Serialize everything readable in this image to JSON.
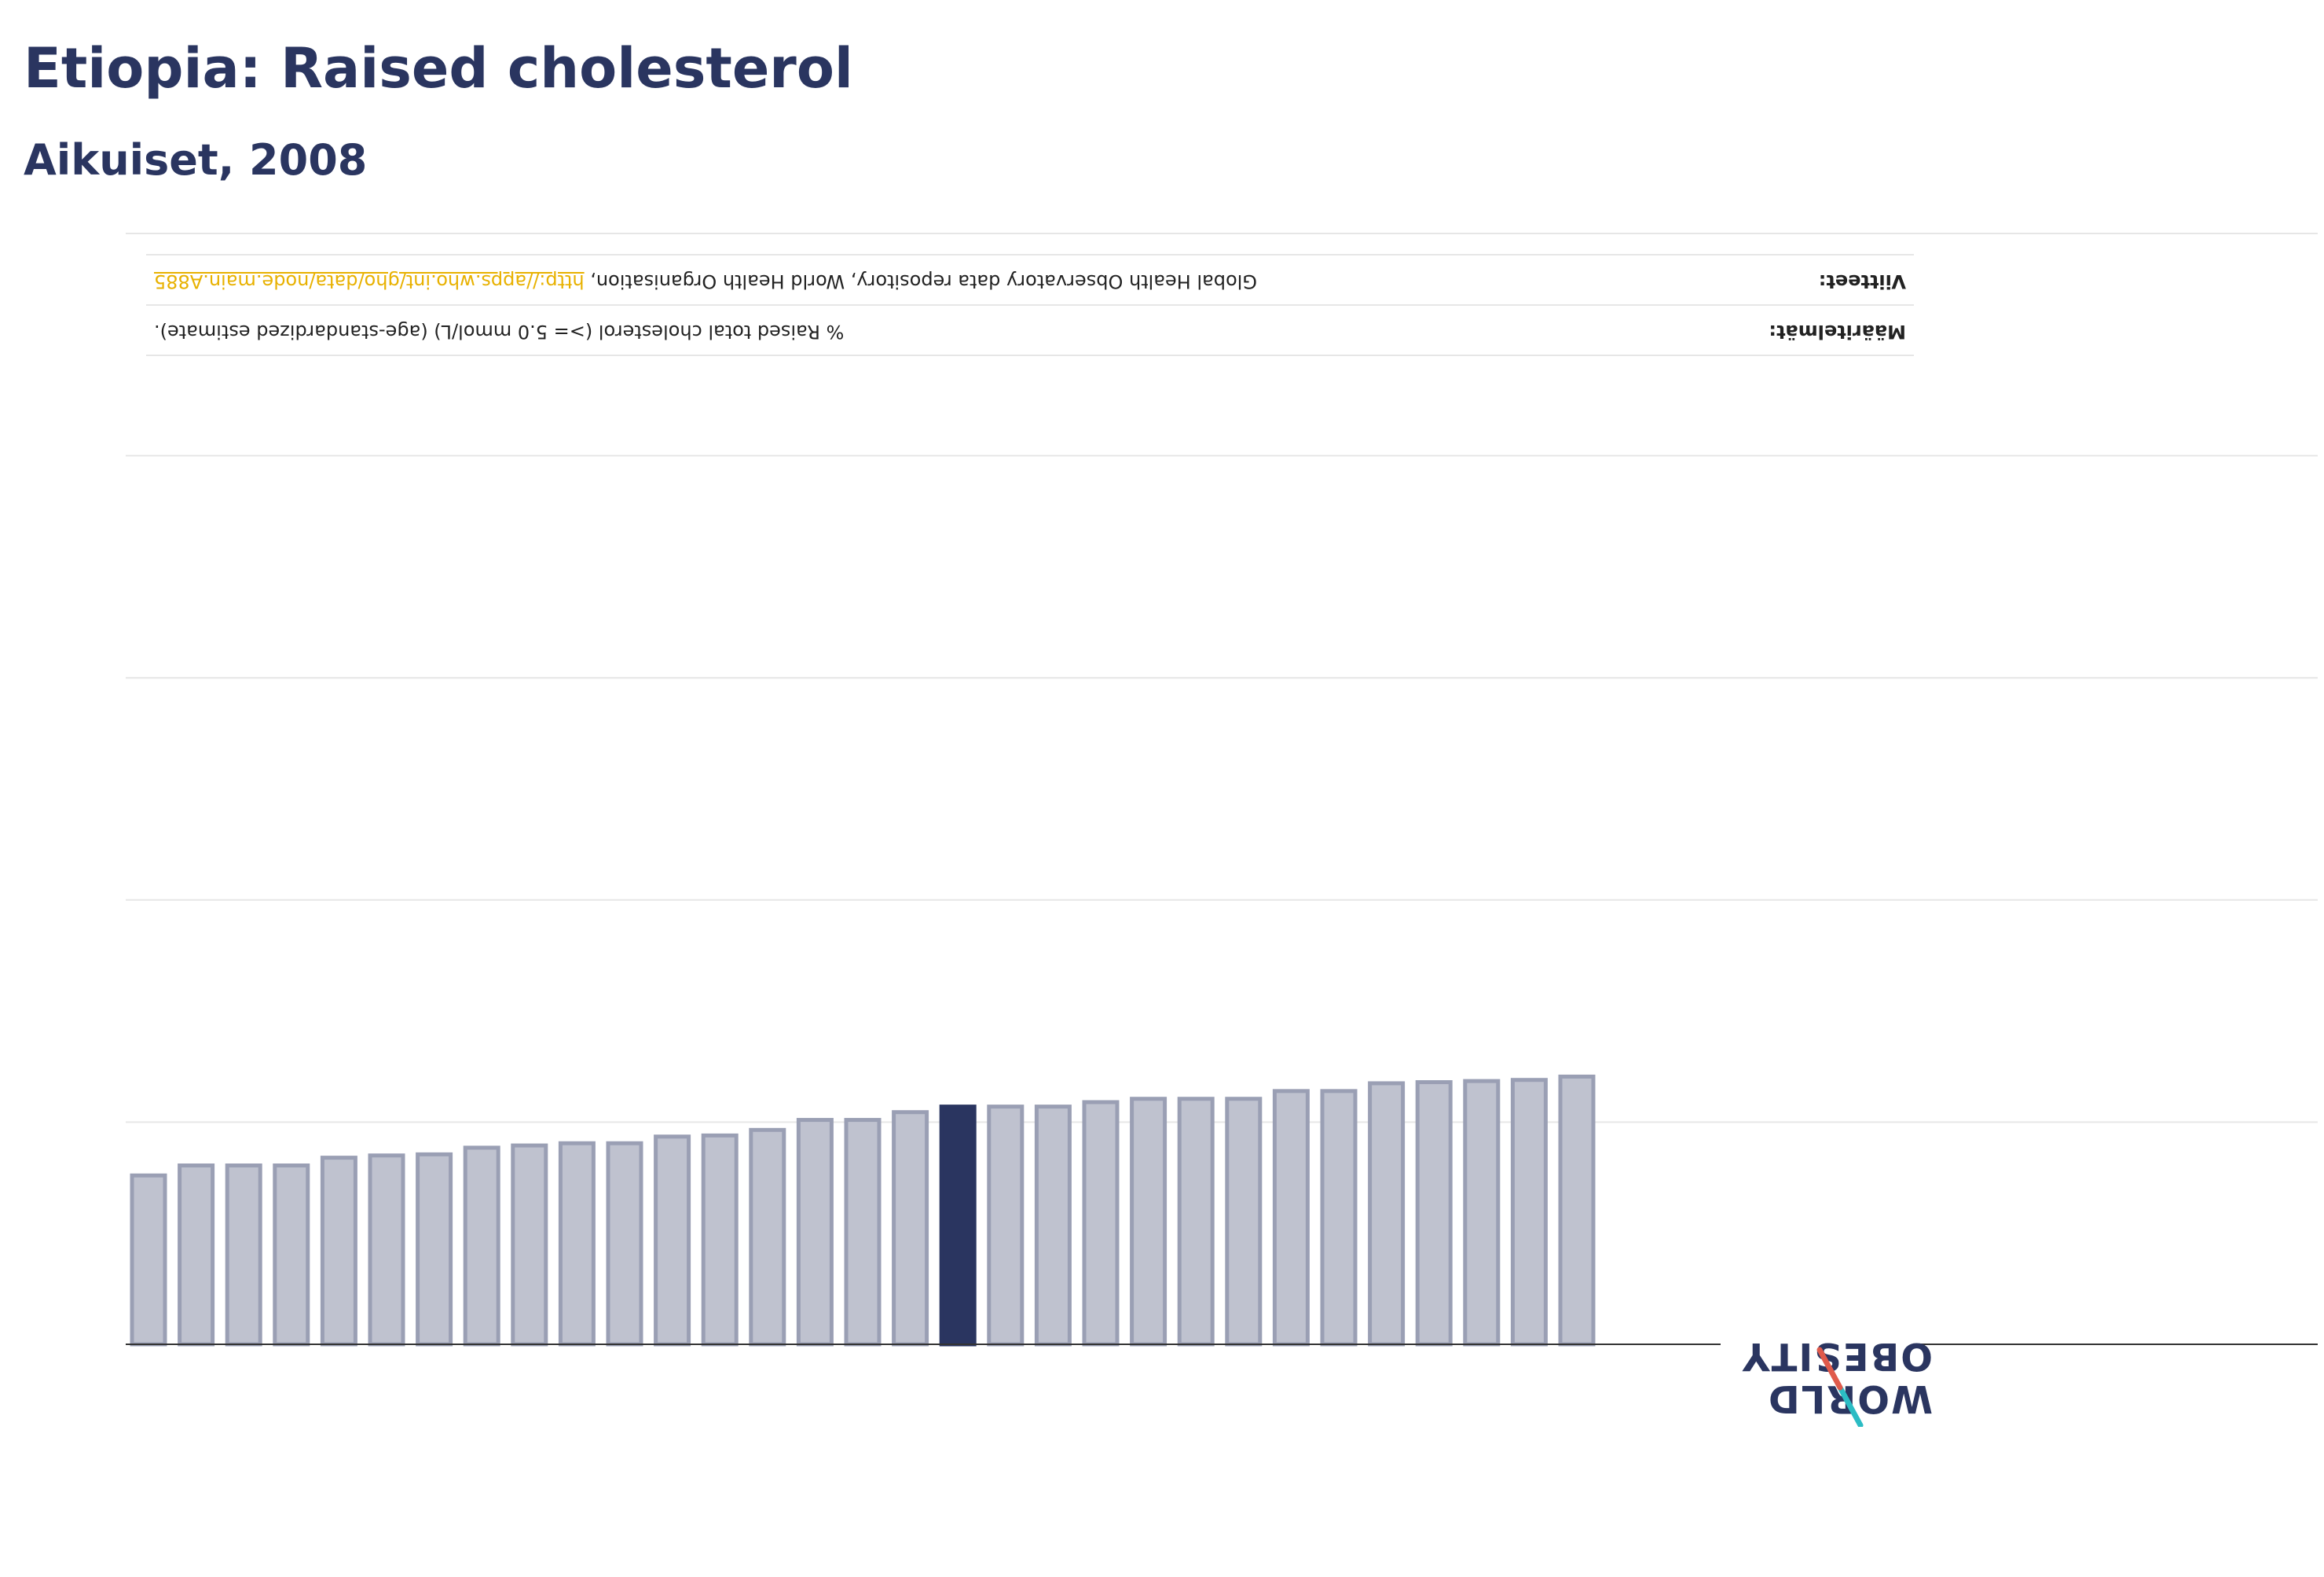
{
  "header": {
    "title": "Etiopia: Raised cholesterol",
    "subtitle": "Aikuiset, 2008"
  },
  "info": {
    "definition_label": "Määritelmät:",
    "definition_value": "% Raised total cholesterol (>= 5.0 mmol/L) (age-standardized estimate).",
    "source_label": "Viitteet:",
    "source_value": "Global Health Observatory data repository, World Health Organisation, ",
    "source_link": "http://apps.who.int/gho/data/node.main.A885"
  },
  "logo": {
    "line1": "WORLD",
    "line2": "OBESITY"
  },
  "colors": {
    "highlight": "#2a3560",
    "bar_fill": "#bfc2cf",
    "bar_stroke": "#9a9fb4",
    "grid": "#e6e6e6",
    "axis": "#333333",
    "logo_red": "#e05a4b",
    "logo_teal": "#2bbcc4"
  },
  "chart_data": {
    "type": "bar",
    "orientation": "inverted",
    "grid": true,
    "ylim": [
      0,
      100
    ],
    "values": [
      15.2,
      16.1,
      16.1,
      16.1,
      16.8,
      17.0,
      17.1,
      17.7,
      17.9,
      18.1,
      18.1,
      18.7,
      18.8,
      19.3,
      20.2,
      20.2,
      20.9,
      21.4,
      21.4,
      21.4,
      21.8,
      22.1,
      22.1,
      22.1,
      22.8,
      22.8,
      23.5,
      23.6,
      23.7,
      23.8,
      24.1
    ],
    "highlight_index": 17
  }
}
